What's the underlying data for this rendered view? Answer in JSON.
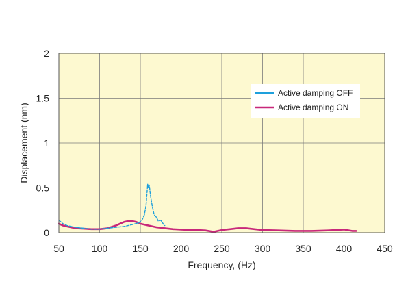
{
  "chart_data": {
    "type": "line",
    "title": "",
    "xlabel": "Frequency, (Hz)",
    "ylabel": "Displacement (nm)",
    "xlim": [
      50,
      450
    ],
    "ylim": [
      0,
      2
    ],
    "x_ticks": [
      50,
      100,
      150,
      200,
      250,
      300,
      350,
      400,
      450
    ],
    "y_ticks": [
      0,
      0.5,
      1,
      1.5,
      2
    ],
    "y_tick_labels": [
      "0",
      "0.5",
      "1",
      "1.5",
      "2"
    ],
    "grid": true,
    "legend_position": "top-right",
    "background_color": "#fdf9d0",
    "series": [
      {
        "name": "Active damping OFF",
        "color": "#1ea0dc",
        "style": "dashed",
        "points": [
          [
            50,
            0.14
          ],
          [
            55,
            0.1
          ],
          [
            60,
            0.08
          ],
          [
            70,
            0.06
          ],
          [
            80,
            0.05
          ],
          [
            90,
            0.04
          ],
          [
            100,
            0.04
          ],
          [
            110,
            0.05
          ],
          [
            120,
            0.06
          ],
          [
            130,
            0.07
          ],
          [
            140,
            0.09
          ],
          [
            148,
            0.11
          ],
          [
            152,
            0.14
          ],
          [
            155,
            0.2
          ],
          [
            157,
            0.3
          ],
          [
            158,
            0.42
          ],
          [
            159,
            0.54
          ],
          [
            160,
            0.5
          ],
          [
            161,
            0.53
          ],
          [
            162,
            0.45
          ],
          [
            163,
            0.38
          ],
          [
            165,
            0.28
          ],
          [
            167,
            0.2
          ],
          [
            170,
            0.17
          ],
          [
            172,
            0.13
          ],
          [
            175,
            0.14
          ],
          [
            178,
            0.1
          ],
          [
            180,
            0.08
          ]
        ]
      },
      {
        "name": "Active damping ON",
        "color": "#c8287a",
        "style": "solid",
        "points": [
          [
            50,
            0.1
          ],
          [
            55,
            0.08
          ],
          [
            60,
            0.07
          ],
          [
            70,
            0.05
          ],
          [
            80,
            0.045
          ],
          [
            90,
            0.04
          ],
          [
            100,
            0.04
          ],
          [
            110,
            0.05
          ],
          [
            120,
            0.08
          ],
          [
            130,
            0.12
          ],
          [
            135,
            0.13
          ],
          [
            140,
            0.13
          ],
          [
            145,
            0.12
          ],
          [
            150,
            0.1
          ],
          [
            160,
            0.08
          ],
          [
            170,
            0.06
          ],
          [
            180,
            0.05
          ],
          [
            190,
            0.04
          ],
          [
            200,
            0.035
          ],
          [
            210,
            0.03
          ],
          [
            220,
            0.03
          ],
          [
            230,
            0.025
          ],
          [
            240,
            0.01
          ],
          [
            250,
            0.03
          ],
          [
            260,
            0.04
          ],
          [
            270,
            0.05
          ],
          [
            280,
            0.05
          ],
          [
            290,
            0.04
          ],
          [
            300,
            0.03
          ],
          [
            320,
            0.025
          ],
          [
            340,
            0.02
          ],
          [
            360,
            0.02
          ],
          [
            380,
            0.025
          ],
          [
            390,
            0.03
          ],
          [
            400,
            0.035
          ],
          [
            410,
            0.02
          ],
          [
            415,
            0.02
          ]
        ]
      }
    ]
  }
}
